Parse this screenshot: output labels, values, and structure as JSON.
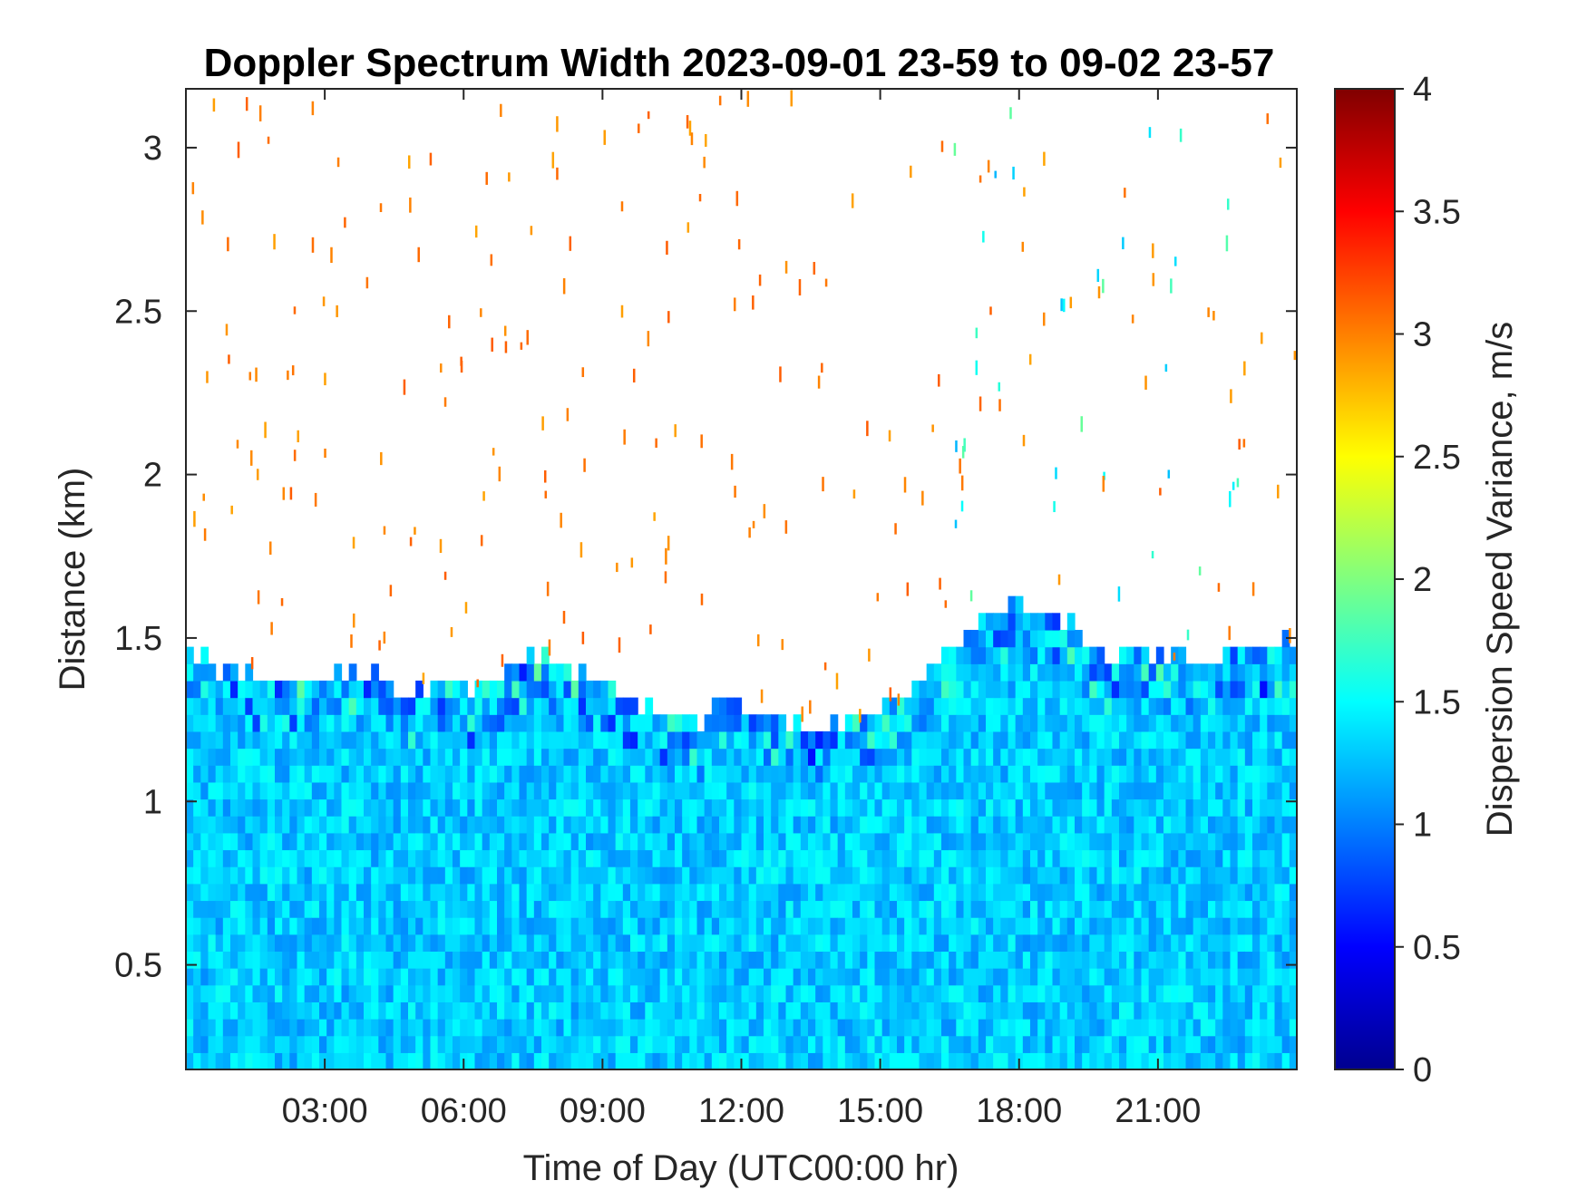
{
  "chart_data": {
    "type": "heatmap",
    "title": "Doppler Spectrum Width 2023-09-01 23-59 to 09-02 23-57",
    "xlabel": "Time of Day (UTC00:00 hr)",
    "ylabel": "Distance (km)",
    "colorbar_label": "Dispersion Speed Variance, m/s",
    "xlim": [
      0,
      24
    ],
    "ylim": [
      0.18,
      3.18
    ],
    "clim": [
      0,
      4
    ],
    "colormap": "jet",
    "x_ticks": [
      {
        "value": 3,
        "label": "03:00"
      },
      {
        "value": 6,
        "label": "06:00"
      },
      {
        "value": 9,
        "label": "09:00"
      },
      {
        "value": 12,
        "label": "12:00"
      },
      {
        "value": 15,
        "label": "15:00"
      },
      {
        "value": 18,
        "label": "18:00"
      },
      {
        "value": 21,
        "label": "21:00"
      }
    ],
    "y_ticks": [
      {
        "value": 0.5,
        "label": "0.5"
      },
      {
        "value": 1,
        "label": "1"
      },
      {
        "value": 1.5,
        "label": "1.5"
      },
      {
        "value": 2,
        "label": "2"
      },
      {
        "value": 2.5,
        "label": "2.5"
      },
      {
        "value": 3,
        "label": "3"
      }
    ],
    "colorbar_ticks": [
      {
        "value": 0,
        "label": "0"
      },
      {
        "value": 0.5,
        "label": "0.5"
      },
      {
        "value": 1,
        "label": "1"
      },
      {
        "value": 1.5,
        "label": "1.5"
      },
      {
        "value": 2,
        "label": "2"
      },
      {
        "value": 2.5,
        "label": "2.5"
      },
      {
        "value": 3,
        "label": "3"
      },
      {
        "value": 3.5,
        "label": "3.5"
      },
      {
        "value": 4,
        "label": "4"
      }
    ],
    "boundary_layer_top_km": {
      "time_hr": [
        0,
        1,
        2,
        3,
        4,
        4.5,
        5,
        6,
        7,
        7.5,
        8,
        9,
        10,
        10.5,
        11,
        12,
        13,
        13.5,
        14,
        15,
        16,
        16.5,
        17,
        18,
        19,
        20,
        21,
        22,
        23,
        24
      ],
      "height": [
        1.45,
        1.4,
        1.38,
        1.38,
        1.4,
        1.33,
        1.33,
        1.35,
        1.4,
        1.45,
        1.43,
        1.35,
        1.3,
        1.25,
        1.25,
        1.3,
        1.25,
        1.2,
        1.22,
        1.27,
        1.38,
        1.45,
        1.55,
        1.62,
        1.55,
        1.45,
        1.45,
        1.42,
        1.48,
        1.5
      ]
    },
    "typical_value_below_top": 1.3,
    "scattered_values_above_top": 3.0
  }
}
